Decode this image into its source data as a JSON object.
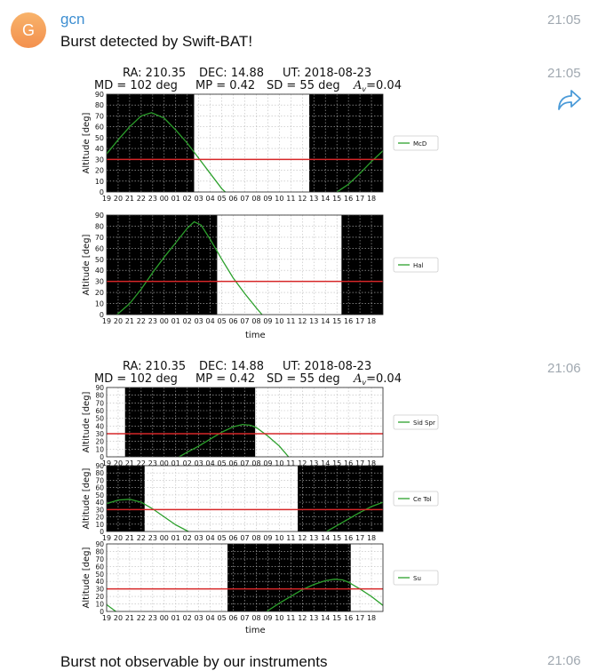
{
  "message1": {
    "avatar_letter": "G",
    "sender": "gcn",
    "text": "Burst detected by Swift-BAT!",
    "time": "21:05"
  },
  "figure1": {
    "time": "21:05",
    "header_line1": [
      "RA: 210.35",
      "DEC: 14.88",
      "UT: 2018-08-23"
    ],
    "header_line2": [
      "MD = 102 deg",
      "MP = 0.42",
      "SD = 55 deg"
    ],
    "airmass_label": "A",
    "airmass_sub": "v",
    "airmass_value": "=0.04",
    "xlabel": "time"
  },
  "figure2": {
    "time": "21:06",
    "header_line1": [
      "RA: 210.35",
      "DEC: 14.88",
      "UT: 2018-08-23"
    ],
    "header_line2": [
      "MD = 102 deg",
      "MP = 0.42",
      "SD = 55 deg"
    ],
    "airmass_label": "A",
    "airmass_sub": "v",
    "airmass_value": "=0.04",
    "xlabel": "time"
  },
  "message_last": {
    "text": "Burst not observable by our instruments",
    "time": "21:06"
  },
  "colors": {
    "sender": "#3d8ed1",
    "time": "#a0a8b0",
    "limit_line": "#d62728",
    "altitude_curve": "#2ca02c",
    "night": "#000000"
  },
  "icons": [
    "forward-icon"
  ],
  "chart_data": [
    {
      "type": "line",
      "site": "McD",
      "xlabel": "",
      "ylabel": "Altitude [deg]",
      "x_ticks": [
        "19",
        "20",
        "21",
        "22",
        "23",
        "00",
        "01",
        "02",
        "03",
        "04",
        "05",
        "06",
        "07",
        "08",
        "09",
        "10",
        "11",
        "12",
        "13",
        "14",
        "15",
        "16",
        "17",
        "18"
      ],
      "y_ticks": [
        "0",
        "10",
        "20",
        "30",
        "40",
        "50",
        "60",
        "70",
        "80",
        "90"
      ],
      "ylim": [
        0,
        90
      ],
      "grid": true,
      "legend": "right",
      "night_intervals": [
        [
          19,
          26.6
        ],
        [
          36.6,
          43
        ]
      ],
      "limit": 30,
      "series": [
        {
          "name": "McD",
          "x": [
            19,
            20,
            21,
            22,
            22.9,
            24,
            25,
            26,
            27,
            28,
            29,
            29.3
          ],
          "y": [
            35,
            48,
            60,
            70,
            73,
            68,
            57,
            45,
            31,
            17,
            3,
            0
          ]
        },
        {
          "x": [
            39,
            40,
            41,
            42,
            43
          ],
          "y": [
            0,
            7,
            17,
            28,
            38
          ]
        }
      ]
    },
    {
      "type": "line",
      "site": "Hal",
      "xlabel": "time",
      "ylabel": "Altitude [deg]",
      "x_ticks": [
        "19",
        "20",
        "21",
        "22",
        "23",
        "00",
        "01",
        "02",
        "03",
        "04",
        "05",
        "06",
        "07",
        "08",
        "09",
        "10",
        "11",
        "12",
        "13",
        "14",
        "15",
        "16",
        "17",
        "18"
      ],
      "y_ticks": [
        "0",
        "10",
        "20",
        "30",
        "40",
        "50",
        "60",
        "70",
        "80",
        "90"
      ],
      "ylim": [
        0,
        90
      ],
      "grid": true,
      "legend": "right",
      "night_intervals": [
        [
          19,
          28.6
        ],
        [
          39.4,
          43
        ]
      ],
      "limit": 30,
      "series": [
        {
          "name": "Hal",
          "x": [
            19.9,
            21,
            22,
            23,
            24,
            25,
            26,
            26.6,
            27.2,
            28,
            29,
            30,
            31,
            32,
            32.5
          ],
          "y": [
            0,
            10,
            23,
            38,
            52,
            65,
            78,
            84,
            81,
            68,
            50,
            33,
            19,
            6,
            0
          ]
        }
      ]
    },
    {
      "type": "line",
      "site": "Sid Spr",
      "xlabel": "",
      "ylabel": "Altitude [deg]",
      "x_ticks": [
        "19",
        "20",
        "21",
        "22",
        "23",
        "00",
        "01",
        "02",
        "03",
        "04",
        "05",
        "06",
        "07",
        "08",
        "09",
        "10",
        "11",
        "12",
        "13",
        "14",
        "15",
        "16",
        "17",
        "18"
      ],
      "y_ticks": [
        "0",
        "10",
        "20",
        "30",
        "40",
        "50",
        "60",
        "70",
        "80",
        "90"
      ],
      "ylim": [
        0,
        90
      ],
      "grid": true,
      "legend": "right",
      "night_intervals": [
        [
          20.6,
          31.9
        ]
      ],
      "limit": 30,
      "series": [
        {
          "name": "Sid Spr",
          "x": [
            25.3,
            26,
            27,
            28,
            29,
            30,
            30.8,
            31.5,
            32,
            33,
            34,
            34.8
          ],
          "y": [
            0,
            6,
            14,
            23,
            32,
            39,
            42,
            41,
            38,
            27,
            14,
            0
          ]
        }
      ]
    },
    {
      "type": "line",
      "site": "Ce Tol",
      "xlabel": "",
      "ylabel": "Altitude [deg]",
      "x_ticks": [
        "19",
        "20",
        "21",
        "22",
        "23",
        "00",
        "01",
        "02",
        "03",
        "04",
        "05",
        "06",
        "07",
        "08",
        "09",
        "10",
        "11",
        "12",
        "13",
        "14",
        "15",
        "16",
        "17",
        "18"
      ],
      "y_ticks": [
        "0",
        "10",
        "20",
        "30",
        "40",
        "50",
        "60",
        "70",
        "80",
        "90"
      ],
      "ylim": [
        0,
        90
      ],
      "grid": true,
      "legend": "right",
      "night_intervals": [
        [
          19,
          22.3
        ],
        [
          35.6,
          43
        ]
      ],
      "limit": 30,
      "series": [
        {
          "name": "Ce Tol",
          "x": [
            19,
            20,
            21,
            22,
            23,
            24,
            25,
            26.1
          ],
          "y": [
            38,
            43,
            44,
            40,
            31,
            20,
            9,
            0
          ]
        },
        {
          "x": [
            38.1,
            39,
            40,
            41,
            42,
            43
          ],
          "y": [
            0,
            8,
            17,
            26,
            34,
            40
          ]
        }
      ]
    },
    {
      "type": "line",
      "site": "Su",
      "xlabel": "time",
      "ylabel": "Altitude [deg]",
      "x_ticks": [
        "19",
        "20",
        "21",
        "22",
        "23",
        "00",
        "01",
        "02",
        "03",
        "04",
        "05",
        "06",
        "07",
        "08",
        "09",
        "10",
        "11",
        "12",
        "13",
        "14",
        "15",
        "16",
        "17",
        "18"
      ],
      "y_ticks": [
        "0",
        "10",
        "20",
        "30",
        "40",
        "50",
        "60",
        "70",
        "80",
        "90"
      ],
      "ylim": [
        0,
        90
      ],
      "grid": true,
      "legend": "right",
      "night_intervals": [
        [
          29.5,
          40.2
        ]
      ],
      "limit": 30,
      "series": [
        {
          "name": "Su",
          "x": [
            19,
            19.8
          ],
          "y": [
            9,
            0
          ]
        },
        {
          "x": [
            32.9,
            34,
            35,
            36,
            37,
            38,
            38.8,
            39.5,
            40,
            41,
            42,
            43
          ],
          "y": [
            0,
            11,
            20,
            29,
            36,
            41,
            43,
            42,
            39,
            30,
            20,
            8
          ]
        }
      ]
    }
  ]
}
